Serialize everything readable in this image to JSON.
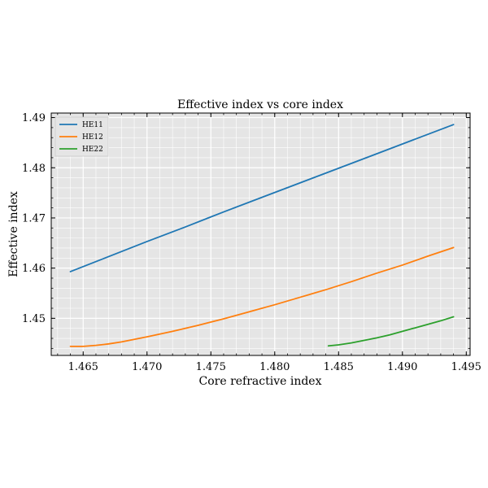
{
  "chart_data": {
    "type": "line",
    "title": "Effective index vs core index",
    "xlabel": "Core refractive index",
    "ylabel": "Effective index",
    "xlim": [
      1.4625,
      1.4953
    ],
    "ylim": [
      1.4426,
      1.4909
    ],
    "xticks": [
      1.465,
      1.47,
      1.475,
      1.48,
      1.485,
      1.49,
      1.495
    ],
    "xtick_labels": [
      "1.465",
      "1.470",
      "1.475",
      "1.480",
      "1.485",
      "1.490",
      "1.495"
    ],
    "yticks": [
      1.45,
      1.46,
      1.47,
      1.48,
      1.49
    ],
    "ytick_labels": [
      "1.45",
      "1.46",
      "1.47",
      "1.48",
      "1.49"
    ],
    "grid": true,
    "legend_position": "top-left",
    "series": [
      {
        "name": "HE11",
        "color": "#1f77b4",
        "x": [
          1.464,
          1.467,
          1.47,
          1.473,
          1.476,
          1.479,
          1.482,
          1.485,
          1.488,
          1.491,
          1.494
        ],
        "y": [
          1.4593,
          1.4623,
          1.4653,
          1.4682,
          1.4712,
          1.4741,
          1.477,
          1.4799,
          1.4828,
          1.4857,
          1.4886
        ]
      },
      {
        "name": "HE12",
        "color": "#ff7f0e",
        "x": [
          1.464,
          1.465,
          1.466,
          1.467,
          1.468,
          1.47,
          1.472,
          1.474,
          1.476,
          1.478,
          1.48,
          1.482,
          1.484,
          1.486,
          1.488,
          1.49,
          1.492,
          1.494
        ],
        "y": [
          1.4444,
          1.4444,
          1.4446,
          1.4449,
          1.4453,
          1.4463,
          1.4474,
          1.4486,
          1.4499,
          1.4513,
          1.4527,
          1.4542,
          1.4557,
          1.4573,
          1.459,
          1.4606,
          1.4624,
          1.4641
        ]
      },
      {
        "name": "HE22",
        "color": "#2ca02c",
        "x": [
          1.4842,
          1.485,
          1.486,
          1.487,
          1.488,
          1.489,
          1.49,
          1.491,
          1.492,
          1.493,
          1.494
        ],
        "y": [
          1.4445,
          1.4447,
          1.4451,
          1.4456,
          1.4461,
          1.4467,
          1.4474,
          1.4481,
          1.4488,
          1.4495,
          1.4503
        ]
      }
    ]
  }
}
